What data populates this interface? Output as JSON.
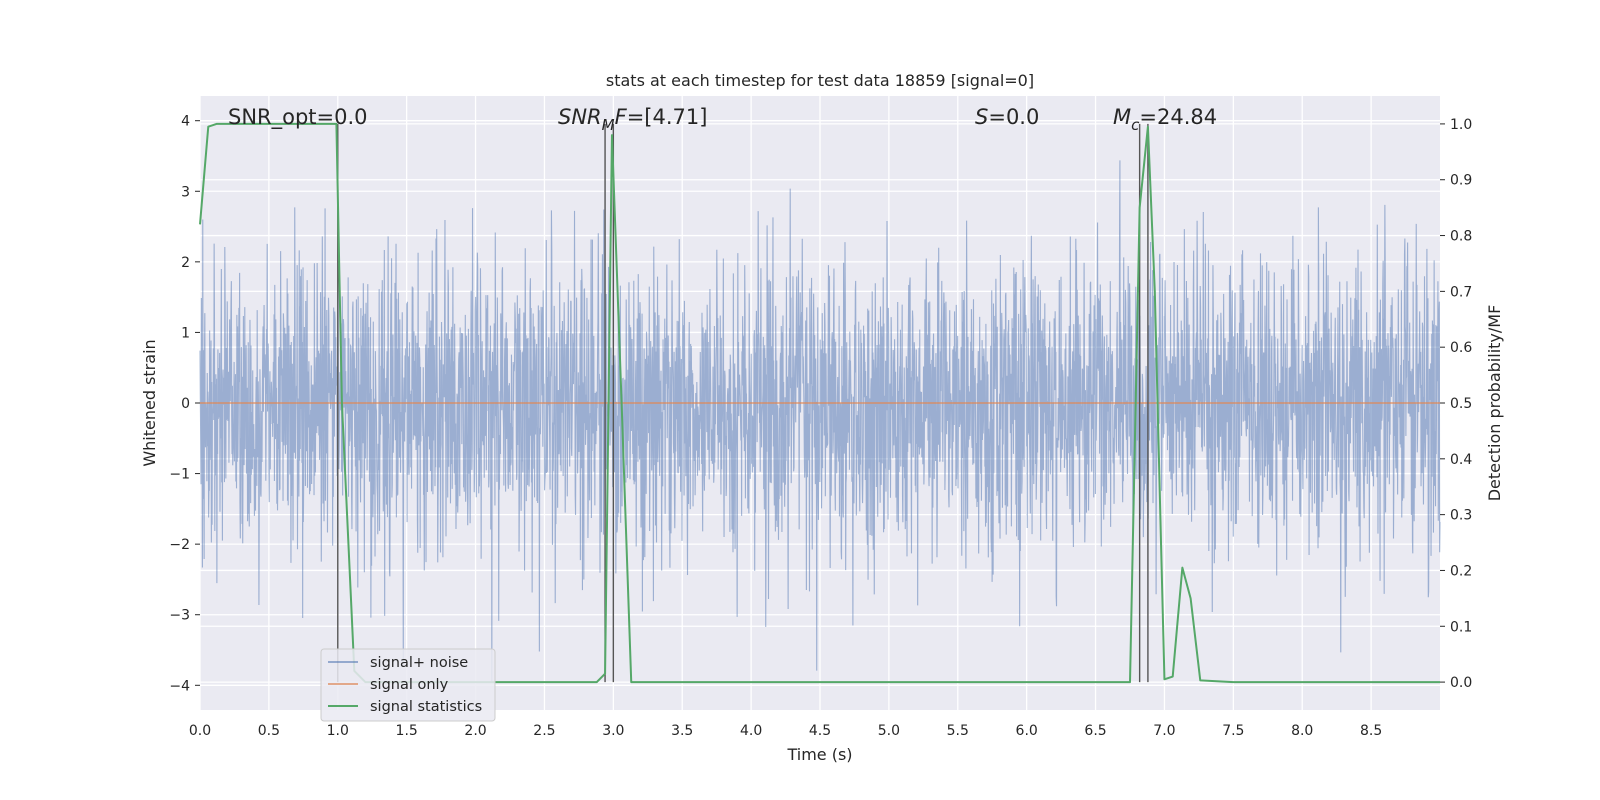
{
  "chart_data": {
    "type": "line",
    "title": "stats at each timestep for test data 18859 [signal=0]",
    "xlabel": "Time (s)",
    "ylabel": "Whitened strain",
    "y2label": "Detection probability/MF",
    "xlim": [
      0,
      9
    ],
    "ylim": [
      -4.35,
      4.35
    ],
    "y2lim": [
      -0.05,
      1.05
    ],
    "xticks": [
      "0.0",
      "0.5",
      "1.0",
      "1.5",
      "2.0",
      "2.5",
      "3.0",
      "3.5",
      "4.0",
      "4.5",
      "5.0",
      "5.5",
      "6.0",
      "6.5",
      "7.0",
      "7.5",
      "8.0",
      "8.5"
    ],
    "yticks": [
      "−4",
      "−3",
      "−2",
      "−1",
      "0",
      "1",
      "2",
      "3",
      "4"
    ],
    "y2ticks": [
      "0.0",
      "0.1",
      "0.2",
      "0.3",
      "0.4",
      "0.5",
      "0.6",
      "0.7",
      "0.8",
      "0.9",
      "1.0"
    ],
    "grid": true,
    "legend_placement": "lower-left",
    "colors": {
      "background": "#eaeaf2",
      "noise": "#4c72b0",
      "signal": "#dd8452",
      "stats": "#55a868",
      "vlines": "#555555"
    },
    "annotations": {
      "snr_opt": "SNR_opt=0.0",
      "snr_mf_sym": "SNR",
      "snr_mf_sub": "M",
      "snr_mf_sym2": "F",
      "snr_mf_val": "=[4.71]",
      "s_sym": "S",
      "s_val": "=0.0",
      "mc_sym": "M",
      "mc_sub": "c",
      "mc_val": "=24.84"
    },
    "series": [
      {
        "name": "signal+ noise",
        "axis": "left",
        "noise_band": [
          -4.0,
          3.9
        ]
      },
      {
        "name": "signal only",
        "axis": "left",
        "x": [
          0,
          9
        ],
        "y": [
          0,
          0
        ]
      },
      {
        "name": "signal statistics",
        "axis": "right",
        "x": [
          0.0,
          0.06,
          0.12,
          0.2,
          0.5,
          0.8,
          0.99,
          1.03,
          1.12,
          1.2,
          1.6,
          2.0,
          2.5,
          2.88,
          2.94,
          2.99,
          3.06,
          3.13,
          3.5,
          4.0,
          4.5,
          5.0,
          5.5,
          6.0,
          6.5,
          6.75,
          6.82,
          6.88,
          6.93,
          6.97,
          7.0,
          7.06,
          7.13,
          7.19,
          7.26,
          7.5,
          8.0,
          8.5,
          9.0
        ],
        "y": [
          0.82,
          0.995,
          1.0,
          1.0,
          1.0,
          1.0,
          1.0,
          0.5,
          0.02,
          0.0,
          0.0,
          0.0,
          0.0,
          0.0,
          0.015,
          0.98,
          0.5,
          0.0,
          0.0,
          0.0,
          0.0,
          0.0,
          0.0,
          0.0,
          0.0,
          0.0,
          0.85,
          0.995,
          0.7,
          0.3,
          0.005,
          0.01,
          0.205,
          0.15,
          0.003,
          0.0,
          0.0,
          0.0,
          0.0
        ]
      }
    ],
    "vlines": [
      1.0,
      2.94,
      3.0,
      6.82,
      6.88
    ],
    "legend": [
      "signal+ noise",
      "signal only",
      "signal statistics"
    ]
  }
}
